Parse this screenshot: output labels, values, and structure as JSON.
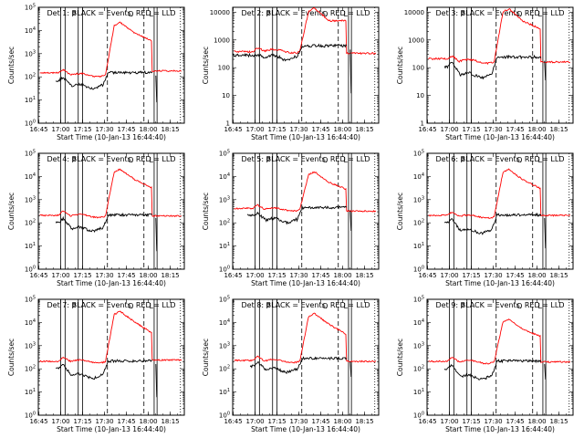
{
  "chart_data": {
    "type": "line",
    "layout": "3x3 grid of detector panels",
    "xlabel": "Start Time (10-Jan-13 16:44:40)",
    "ylabel": "Counts/sec",
    "x_tick_labels": [
      "16:45",
      "17:00",
      "17:15",
      "17:30",
      "17:45",
      "18:00",
      "18:15"
    ],
    "xlim": [
      "16:44:40",
      "18:24"
    ],
    "yscale": "log",
    "grid": false,
    "series_colors": {
      "Events": "#000000",
      "LLD": "#ff0000"
    },
    "markers": {
      "P": "17:09",
      "O": "17:48",
      "L": "18:02"
    },
    "vertical_lines": {
      "solid": [
        "17:00",
        "17:03",
        "17:12",
        "17:15",
        "18:04",
        "18:06"
      ],
      "dashed": [
        "17:32",
        "17:57"
      ],
      "dotted": [
        "18:22"
      ]
    },
    "panels": [
      {
        "title": "Det 1: BLACK = Events, RED = LLD",
        "ylim": [
          1,
          100000
        ],
        "y_tick_labels": [
          "10^0",
          "10^1",
          "10^2",
          "10^3",
          "10^4",
          "10^5"
        ],
        "y_ticks": [
          1,
          10,
          100,
          1000,
          10000,
          100000
        ],
        "gap_after_min": 80,
        "black_start_min": 12,
        "lld": {
          "base": 150,
          "bump": 210,
          "dip": 120,
          "peak": 22000,
          "after": 180,
          "hi_drop": 3500
        },
        "evt": {
          "base": 70,
          "bump": 95,
          "dip": 40,
          "tail_end": 8
        }
      },
      {
        "title": "Det 2: BLACK = Events, RED = LLD",
        "ylim": [
          1,
          15000
        ],
        "y_tick_labels": [
          "1",
          "10",
          "100",
          "1000",
          "10000"
        ],
        "y_ticks": [
          1,
          10,
          100,
          1000,
          10000
        ],
        "gap_after_min": 80,
        "black_start_min": 0,
        "lld": {
          "base": 380,
          "bump": 520,
          "dip": 400,
          "peak": 14000,
          "after": 330,
          "hi_drop": 5000
        },
        "evt": {
          "base": 280,
          "bump": 300,
          "dip": 230,
          "tail_end": 12
        }
      },
      {
        "title": "Det 3: BLACK = Events, RED = LLD",
        "ylim": [
          1,
          15000
        ],
        "y_tick_labels": [
          "1",
          "10",
          "100",
          "1000",
          "10000"
        ],
        "y_ticks": [
          1,
          10,
          100,
          1000,
          10000
        ],
        "gap_after_min": 80,
        "black_start_min": 12,
        "lld": {
          "base": 210,
          "bump": 270,
          "dip": 170,
          "peak": 13500,
          "after": 160,
          "hi_drop": 2500
        },
        "evt": {
          "base": 110,
          "bump": 150,
          "dip": 55,
          "tail_end": 35
        }
      },
      {
        "title": "Det 4: BLACK = Events, RED = LLD",
        "ylim": [
          1,
          100000
        ],
        "y_tick_labels": [
          "10^0",
          "10^1",
          "10^2",
          "10^3",
          "10^4",
          "10^5"
        ],
        "y_ticks": [
          1,
          10,
          100,
          1000,
          10000,
          100000
        ],
        "gap_after_min": 80,
        "black_start_min": 12,
        "lld": {
          "base": 210,
          "bump": 330,
          "dip": 200,
          "peak": 21000,
          "after": 200,
          "hi_drop": 3200
        },
        "evt": {
          "base": 100,
          "bump": 160,
          "dip": 55,
          "tail_end": 6
        }
      },
      {
        "title": "Det 5: BLACK = Events, RED = LLD",
        "ylim": [
          1,
          100000
        ],
        "y_tick_labels": [
          "10^0",
          "10^1",
          "10^2",
          "10^3",
          "10^4",
          "10^5"
        ],
        "y_ticks": [
          1,
          10,
          100,
          1000,
          10000,
          100000
        ],
        "gap_after_min": 80,
        "black_start_min": 10,
        "lld": {
          "base": 420,
          "bump": 600,
          "dip": 380,
          "peak": 16000,
          "after": 320,
          "hi_drop": 2800
        },
        "evt": {
          "base": 210,
          "bump": 260,
          "dip": 130,
          "tail_end": 45
        }
      },
      {
        "title": "Det 6: BLACK = Events, RED = LLD",
        "ylim": [
          1,
          100000
        ],
        "y_tick_labels": [
          "10^0",
          "10^1",
          "10^2",
          "10^3",
          "10^4",
          "10^5"
        ],
        "y_ticks": [
          1,
          10,
          100,
          1000,
          10000,
          100000
        ],
        "gap_after_min": 80,
        "black_start_min": 12,
        "lld": {
          "base": 210,
          "bump": 300,
          "dip": 190,
          "peak": 20000,
          "after": 210,
          "hi_drop": 3000
        },
        "evt": {
          "base": 100,
          "bump": 150,
          "dip": 45,
          "tail_end": 8
        }
      },
      {
        "title": "Det 7: BLACK = Events, RED = LLD",
        "ylim": [
          1,
          100000
        ],
        "y_tick_labels": [
          "10^0",
          "10^1",
          "10^2",
          "10^3",
          "10^4",
          "10^5"
        ],
        "y_ticks": [
          1,
          10,
          100,
          1000,
          10000,
          100000
        ],
        "gap_after_min": 80,
        "black_start_min": 12,
        "lld": {
          "base": 210,
          "bump": 330,
          "dip": 210,
          "peak": 30000,
          "after": 240,
          "hi_drop": 3500
        },
        "evt": {
          "base": 100,
          "bump": 150,
          "dip": 50,
          "tail_end": 6
        }
      },
      {
        "title": "Det 8: BLACK = Events, RED = LLD",
        "ylim": [
          1,
          100000
        ],
        "y_tick_labels": [
          "10^0",
          "10^1",
          "10^2",
          "10^3",
          "10^4",
          "10^5"
        ],
        "y_ticks": [
          1,
          10,
          100,
          1000,
          10000,
          100000
        ],
        "gap_after_min": 80,
        "black_start_min": 12,
        "lld": {
          "base": 230,
          "bump": 340,
          "dip": 220,
          "peak": 24000,
          "after": 210,
          "hi_drop": 3000
        },
        "evt": {
          "base": 130,
          "bump": 200,
          "dip": 90,
          "tail_end": 45
        }
      },
      {
        "title": "Det 9: BLACK = Events, RED = LLD",
        "ylim": [
          1,
          100000
        ],
        "y_tick_labels": [
          "10^0",
          "10^1",
          "10^2",
          "10^3",
          "10^4",
          "10^5"
        ],
        "y_ticks": [
          1,
          10,
          100,
          1000,
          10000,
          100000
        ],
        "gap_after_min": 80,
        "black_start_min": 12,
        "lld": {
          "base": 210,
          "bump": 330,
          "dip": 200,
          "peak": 14000,
          "after": 200,
          "hi_drop": 2500
        },
        "evt": {
          "base": 100,
          "bump": 150,
          "dip": 45,
          "tail_end": 35
        }
      }
    ]
  }
}
